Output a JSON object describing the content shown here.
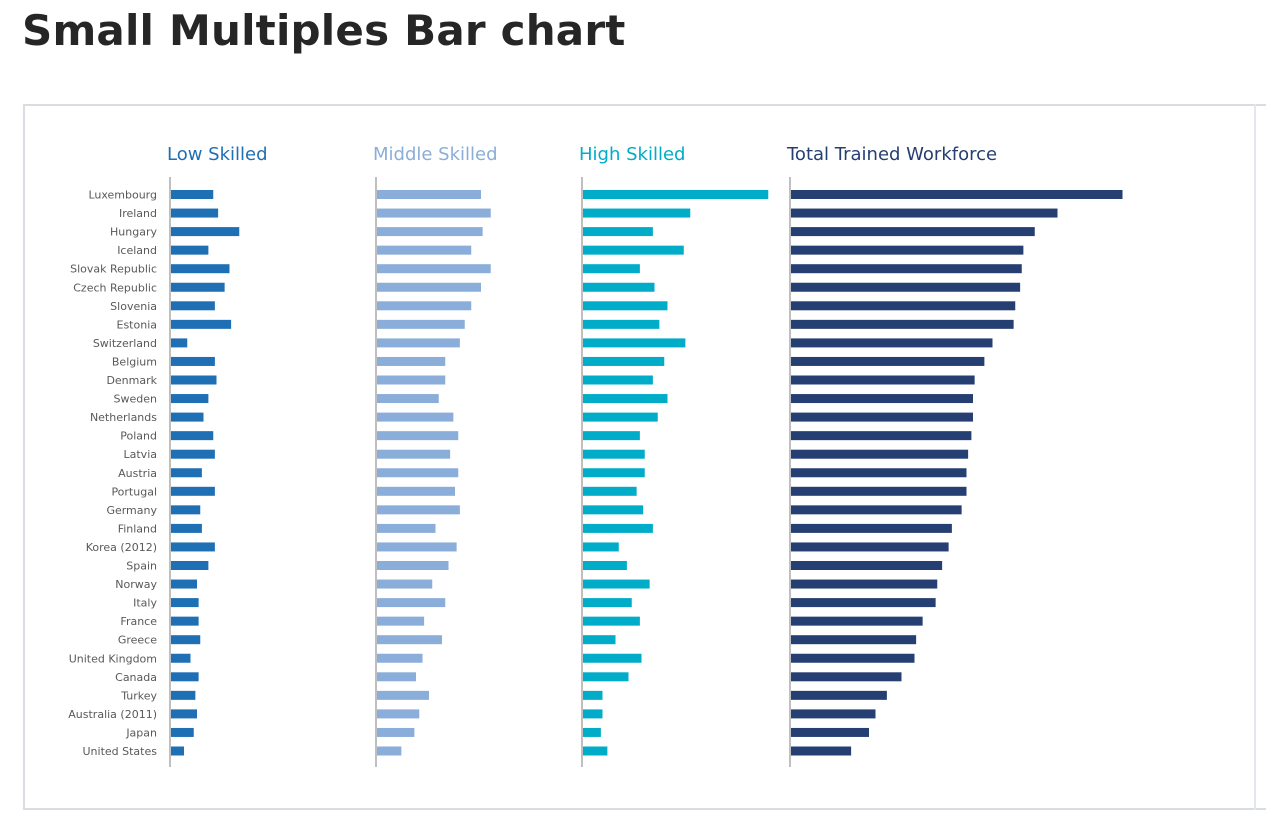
{
  "page": {
    "title": "Small Multiples Bar chart"
  },
  "chart_data": {
    "type": "bar",
    "orientation": "horizontal",
    "layout": "small-multiples",
    "categories": [
      "Luxembourg",
      "Ireland",
      "Hungary",
      "Iceland",
      "Slovak Republic",
      "Czech Republic",
      "Slovenia",
      "Estonia",
      "Switzerland",
      "Belgium",
      "Denmark",
      "Sweden",
      "Netherlands",
      "Poland",
      "Latvia",
      "Austria",
      "Portugal",
      "Germany",
      "Finland",
      "Korea (2012)",
      "Spain",
      "Norway",
      "Italy",
      "France",
      "Greece",
      "United Kingdom",
      "Canada",
      "Turkey",
      "Australia (2011)",
      "Japan",
      "United States"
    ],
    "series": [
      {
        "name": "Low Skilled",
        "color": "#1f6fb5",
        "values": [
          13,
          14.5,
          21,
          11.5,
          18,
          16.5,
          13.5,
          18.5,
          5,
          13.5,
          14,
          11.5,
          10,
          13,
          13.5,
          9.5,
          13.5,
          9,
          9.5,
          13.5,
          11.5,
          8,
          8.5,
          8.5,
          9,
          6,
          8.5,
          7.5,
          8,
          7,
          4
        ]
      },
      {
        "name": "Middle Skilled",
        "color": "#8aaed9",
        "values": [
          32,
          35,
          32.5,
          29,
          35,
          32,
          29,
          27,
          25.5,
          21,
          21,
          19,
          23.5,
          25,
          22.5,
          25,
          24,
          25.5,
          18,
          24.5,
          22,
          17,
          21,
          14.5,
          20,
          14,
          12,
          16,
          13,
          11.5,
          7.5
        ]
      },
      {
        "name": "High Skilled",
        "color": "#00acc8",
        "values": [
          57,
          33,
          21.5,
          31,
          17.5,
          22,
          26,
          23.5,
          31.5,
          25,
          21.5,
          26,
          23,
          17.5,
          19,
          19,
          16.5,
          18.5,
          21.5,
          11,
          13.5,
          20.5,
          15,
          17.5,
          10,
          18,
          14,
          6,
          6,
          5.5,
          7.5
        ]
      },
      {
        "name": "Total Trained Workforce",
        "color": "#253f73",
        "values": [
          102,
          82,
          75,
          71.5,
          71,
          70.5,
          69,
          68.5,
          62,
          59.5,
          56.5,
          56,
          56,
          55.5,
          54.5,
          54,
          54,
          52.5,
          49.5,
          48.5,
          46.5,
          45,
          44.5,
          40.5,
          38.5,
          38,
          34,
          29.5,
          26,
          24,
          18.5
        ]
      }
    ],
    "grid": false,
    "legend": "none"
  }
}
